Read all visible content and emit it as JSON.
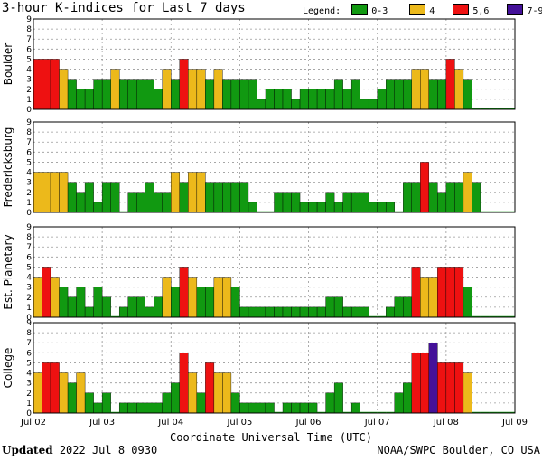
{
  "header": {
    "title": "3-hour K-indices for Last 7 days",
    "legend_title": "Legend:",
    "legend": [
      {
        "label": "0-3",
        "color": "#119911"
      },
      {
        "label": "4",
        "color": "#ecb91b"
      },
      {
        "label": "5,6",
        "color": "#ee1111"
      },
      {
        "label": "7-9",
        "color": "#441199"
      }
    ]
  },
  "footer": {
    "updated_label": "Updated",
    "updated_value": "2022 Jul  8 0930",
    "credit": "NOAA/SWPC Boulder, CO USA"
  },
  "chart_data": [
    {
      "type": "bar",
      "title": "Boulder",
      "ylabel": "Boulder",
      "ylim": [
        0,
        9
      ],
      "yticks": [
        "0",
        "1",
        "2",
        "3",
        "4",
        "5",
        "6",
        "7",
        "8",
        "9"
      ],
      "xlabel": "Coordinate Universal Time (UTC)",
      "xticks": [
        "Jul 02",
        "Jul 03",
        "Jul 04",
        "Jul 05",
        "Jul 06",
        "Jul 07",
        "Jul 08",
        "Jul 09"
      ],
      "values": [
        5,
        5,
        5,
        4,
        3,
        2,
        2,
        3,
        3,
        4,
        3,
        3,
        3,
        3,
        2,
        4,
        3,
        5,
        4,
        4,
        3,
        4,
        3,
        3,
        3,
        3,
        1,
        2,
        2,
        2,
        1,
        2,
        2,
        2,
        2,
        3,
        2,
        3,
        1,
        1,
        2,
        3,
        3,
        3,
        4,
        4,
        3,
        3,
        5,
        4,
        3,
        0,
        0,
        0,
        0,
        0
      ]
    },
    {
      "type": "bar",
      "title": "Fredericksburg",
      "ylabel": "Fredericksburg",
      "ylim": [
        0,
        9
      ],
      "yticks": [
        "0",
        "1",
        "2",
        "3",
        "4",
        "5",
        "6",
        "7",
        "8",
        "9"
      ],
      "xlabel": "Coordinate Universal Time (UTC)",
      "xticks": [
        "Jul 02",
        "Jul 03",
        "Jul 04",
        "Jul 05",
        "Jul 06",
        "Jul 07",
        "Jul 08",
        "Jul 09"
      ],
      "values": [
        4,
        4,
        4,
        4,
        3,
        2,
        3,
        1,
        3,
        3,
        0,
        2,
        2,
        3,
        2,
        2,
        4,
        3,
        4,
        4,
        3,
        3,
        3,
        3,
        3,
        1,
        0,
        0,
        2,
        2,
        2,
        1,
        1,
        1,
        2,
        1,
        2,
        2,
        2,
        1,
        1,
        1,
        0,
        3,
        3,
        5,
        3,
        2,
        3,
        3,
        4,
        3,
        0,
        0,
        0,
        0
      ]
    },
    {
      "type": "bar",
      "title": "Est. Planetary",
      "ylabel": "Est. Planetary",
      "ylim": [
        0,
        9
      ],
      "yticks": [
        "0",
        "1",
        "2",
        "3",
        "4",
        "5",
        "6",
        "7",
        "8",
        "9"
      ],
      "xlabel": "Coordinate Universal Time (UTC)",
      "xticks": [
        "Jul 02",
        "Jul 03",
        "Jul 04",
        "Jul 05",
        "Jul 06",
        "Jul 07",
        "Jul 08",
        "Jul 09"
      ],
      "values": [
        4,
        5,
        4,
        3,
        2,
        3,
        1,
        3,
        2,
        0,
        1,
        2,
        2,
        1,
        2,
        4,
        3,
        5,
        4,
        3,
        3,
        4,
        4,
        3,
        1,
        1,
        1,
        1,
        1,
        1,
        1,
        1,
        1,
        1,
        2,
        2,
        1,
        1,
        1,
        0,
        0,
        1,
        2,
        2,
        5,
        4,
        4,
        5,
        5,
        5,
        3,
        0,
        0,
        0,
        0,
        0
      ]
    },
    {
      "type": "bar",
      "title": "College",
      "ylabel": "College",
      "ylim": [
        0,
        9
      ],
      "yticks": [
        "0",
        "1",
        "2",
        "3",
        "4",
        "5",
        "6",
        "7",
        "8",
        "9"
      ],
      "xlabel": "Coordinate Universal Time (UTC)",
      "xticks": [
        "Jul 02",
        "Jul 03",
        "Jul 04",
        "Jul 05",
        "Jul 06",
        "Jul 07",
        "Jul 08",
        "Jul 09"
      ],
      "values": [
        4,
        5,
        5,
        4,
        3,
        4,
        2,
        1,
        2,
        0,
        1,
        1,
        1,
        1,
        1,
        2,
        3,
        6,
        4,
        2,
        5,
        4,
        4,
        2,
        1,
        1,
        1,
        1,
        0,
        1,
        1,
        1,
        1,
        0,
        2,
        3,
        0,
        1,
        0,
        0,
        0,
        0,
        2,
        3,
        6,
        6,
        7,
        5,
        5,
        5,
        4,
        0,
        0,
        0,
        0,
        0
      ]
    }
  ]
}
